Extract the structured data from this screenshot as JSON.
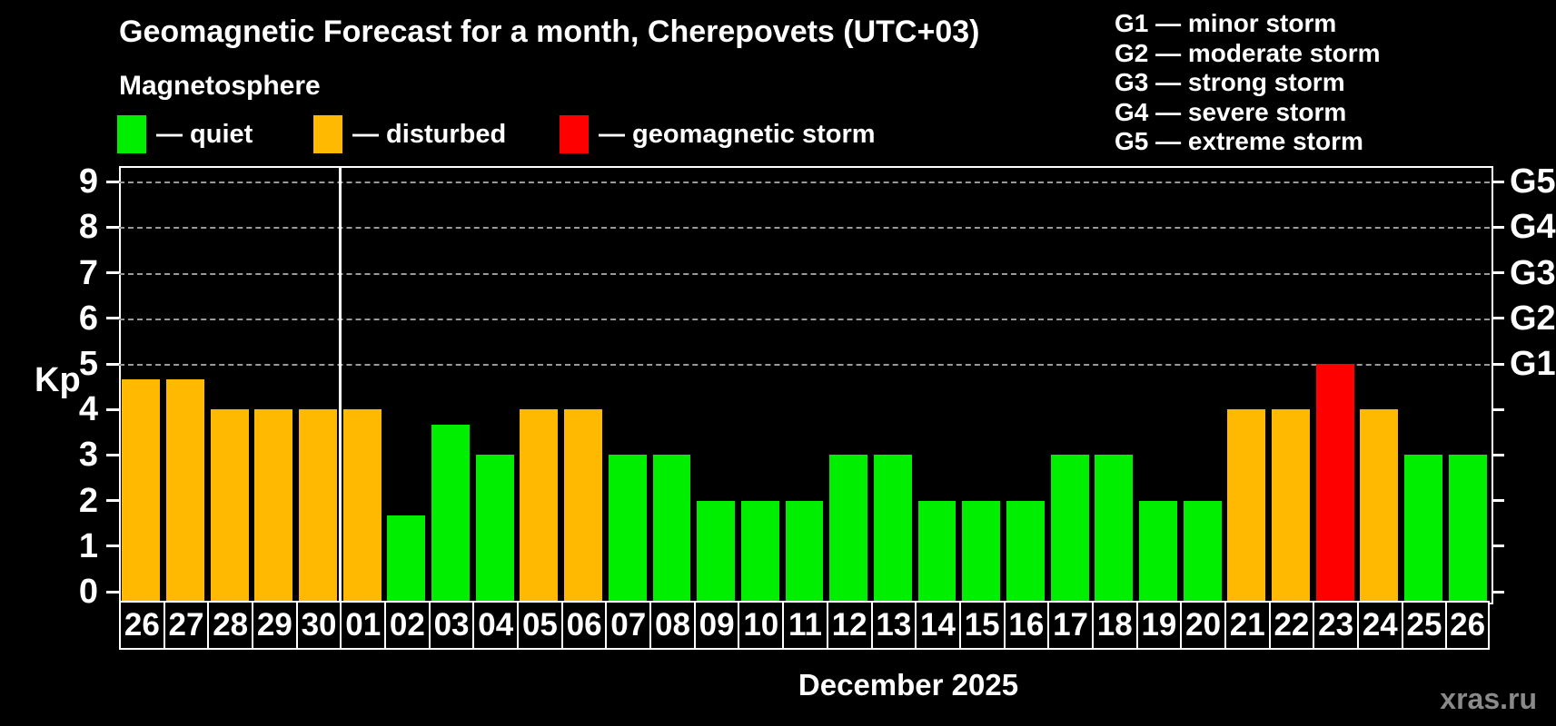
{
  "header": {
    "title": "Geomagnetic Forecast for a month, Cherepovets (UTC+03)",
    "subtitle": "Magnetosphere"
  },
  "legend": {
    "items": [
      {
        "label": "— quiet",
        "status": "quiet",
        "color": "#00ee00",
        "x": 0
      },
      {
        "label": "— disturbed",
        "status": "disturbed",
        "color": "#ffb900",
        "x": 216
      },
      {
        "label": "— geomagnetic storm",
        "status": "storm",
        "color": "#ff0000",
        "x": 487
      }
    ]
  },
  "g_legend": {
    "items": [
      "G1 — minor storm",
      "G2 — moderate storm",
      "G3 — strong storm",
      "G4 — severe storm",
      "G5 — extreme storm"
    ]
  },
  "axis": {
    "ylabel": "Kp",
    "y_ticks": [
      0,
      1,
      2,
      3,
      4,
      5,
      6,
      7,
      8,
      9
    ],
    "right_labels": {
      "5": "G1",
      "6": "G2",
      "7": "G3",
      "8": "G4",
      "9": "G5"
    }
  },
  "footer": {
    "month": "December 2025",
    "watermark": "xras.ru"
  },
  "chart_data": {
    "type": "bar",
    "title": "Geomagnetic Forecast for a month, Cherepovets (UTC+03)",
    "ylabel": "Kp",
    "xlabel": "December 2025",
    "ylim": [
      0,
      9
    ],
    "grid_values": [
      5,
      6,
      7,
      8,
      9
    ],
    "separator_before_index": 5,
    "categories": [
      "26",
      "27",
      "28",
      "29",
      "30",
      "01",
      "02",
      "03",
      "04",
      "05",
      "06",
      "07",
      "08",
      "09",
      "10",
      "11",
      "12",
      "13",
      "14",
      "15",
      "16",
      "17",
      "18",
      "19",
      "20",
      "21",
      "22",
      "23",
      "24",
      "25",
      "26"
    ],
    "values": [
      4.67,
      4.67,
      4,
      4,
      4,
      4,
      1.67,
      3.67,
      3,
      4,
      4,
      3,
      3,
      2,
      2,
      2,
      3,
      3,
      2,
      2,
      2,
      3,
      3,
      2,
      2,
      4,
      4,
      5,
      4,
      3,
      3
    ],
    "statuses": [
      "disturbed",
      "disturbed",
      "disturbed",
      "disturbed",
      "disturbed",
      "disturbed",
      "quiet",
      "quiet",
      "quiet",
      "disturbed",
      "disturbed",
      "quiet",
      "quiet",
      "quiet",
      "quiet",
      "quiet",
      "quiet",
      "quiet",
      "quiet",
      "quiet",
      "quiet",
      "quiet",
      "quiet",
      "quiet",
      "quiet",
      "disturbed",
      "disturbed",
      "storm",
      "disturbed",
      "quiet",
      "quiet"
    ],
    "legend_position": "top-left",
    "grid": "dashed, values 5-9 only"
  }
}
